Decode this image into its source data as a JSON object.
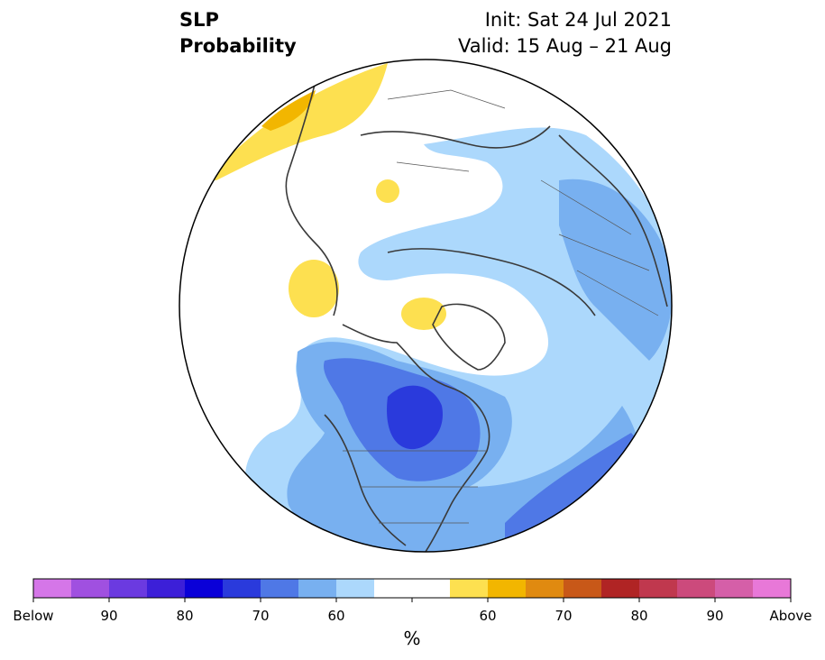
{
  "title": {
    "left_line1": "SLP",
    "left_line2": "Probability",
    "right_line1": "Init: Sat 24 Jul 2021",
    "right_line2": "Valid: 15 Aug – 21 Aug"
  },
  "colorbar": {
    "unit": "%",
    "colors": [
      "#d576e8",
      "#a050e0",
      "#6b3ae0",
      "#3c1fd8",
      "#0a00d8",
      "#2a3adc",
      "#4f78e6",
      "#78b0f0",
      "#acd8fc",
      "#ffffff",
      "#fde050",
      "#f2b600",
      "#e08a10",
      "#c85818",
      "#b02424",
      "#c0384e",
      "#cc4a7c",
      "#d55fa8",
      "#e878d8"
    ],
    "tick_labels": [
      "Below",
      "90",
      "80",
      "70",
      "60",
      "60",
      "70",
      "80",
      "90",
      "Above"
    ]
  },
  "map": {
    "colors": {
      "below_60": "#acd8fc",
      "below_60b": "#78b0f0",
      "below_70": "#4f78e6",
      "below_80": "#2a3adc",
      "above_60": "#fde050",
      "above_70": "#f2b600"
    }
  }
}
